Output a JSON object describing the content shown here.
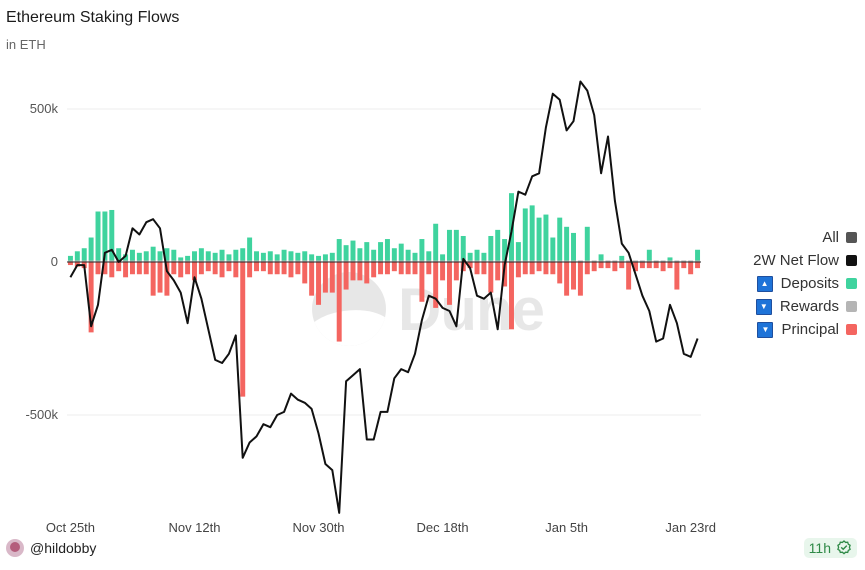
{
  "header": {
    "title": "Ethereum Staking Flows",
    "subtitle": "in ETH"
  },
  "legend": {
    "all": {
      "label": "All",
      "color": "#555555"
    },
    "net": {
      "label": "2W Net Flow",
      "color": "#111111"
    },
    "deposits": {
      "label": "Deposits",
      "color": "#3fd39e"
    },
    "rewards": {
      "label": "Rewards",
      "color": "#b5b5b5"
    },
    "principal": {
      "label": "Principal",
      "color": "#f46560"
    }
  },
  "watermark": {
    "text": "Dune"
  },
  "footer": {
    "user": "@hildobby",
    "age": "11h"
  },
  "chart_data": {
    "type": "bar+line",
    "title": "Ethereum Staking Flows",
    "ylabel": "in ETH",
    "ylim": [
      -880000,
      560000
    ],
    "yticks": [
      500000,
      0,
      -500000
    ],
    "ytick_labels": [
      "500k",
      "0",
      "-500k"
    ],
    "xticks": [
      {
        "label": "Oct 25th",
        "day": 0
      },
      {
        "label": "Nov 12th",
        "day": 18
      },
      {
        "label": "Nov 30th",
        "day": 36
      },
      {
        "label": "Dec 18th",
        "day": 54
      },
      {
        "label": "Jan 5th",
        "day": 72
      },
      {
        "label": "Jan 23rd",
        "day": 90
      }
    ],
    "days": 92,
    "series": [
      {
        "name": "Deposits",
        "type": "bar",
        "color": "#3fd39e",
        "values": [
          15000,
          30000,
          40000,
          75000,
          160000,
          160000,
          165000,
          40000,
          20000,
          35000,
          25000,
          30000,
          45000,
          30000,
          40000,
          35000,
          10000,
          15000,
          30000,
          40000,
          30000,
          25000,
          35000,
          20000,
          35000,
          40000,
          75000,
          30000,
          25000,
          30000,
          20000,
          35000,
          30000,
          25000,
          30000,
          20000,
          15000,
          20000,
          25000,
          70000,
          50000,
          65000,
          40000,
          60000,
          35000,
          60000,
          70000,
          40000,
          55000,
          35000,
          25000,
          70000,
          30000,
          120000,
          20000,
          100000,
          100000,
          80000,
          25000,
          35000,
          25000,
          80000,
          100000,
          70000,
          220000,
          60000,
          170000,
          180000,
          140000,
          150000,
          75000,
          140000,
          110000,
          90000,
          0,
          110000,
          0,
          20000,
          0,
          0,
          15000,
          0,
          0,
          0,
          35000,
          0,
          0,
          10000,
          0,
          0,
          0,
          35000
        ]
      },
      {
        "name": "Rewards",
        "type": "bar",
        "color": "#b5b5b5",
        "values": [
          5000,
          5000,
          5000,
          5000,
          5000,
          5000,
          5000,
          5000,
          5000,
          5000,
          5000,
          5000,
          5000,
          5000,
          5000,
          5000,
          5000,
          5000,
          5000,
          5000,
          5000,
          5000,
          5000,
          5000,
          5000,
          5000,
          5000,
          5000,
          5000,
          5000,
          5000,
          5000,
          5000,
          5000,
          5000,
          5000,
          5000,
          5000,
          5000,
          5000,
          5000,
          5000,
          5000,
          5000,
          5000,
          5000,
          5000,
          5000,
          5000,
          5000,
          5000,
          5000,
          5000,
          5000,
          5000,
          5000,
          5000,
          5000,
          5000,
          5000,
          5000,
          5000,
          5000,
          5000,
          5000,
          5000,
          5000,
          5000,
          5000,
          5000,
          5000,
          5000,
          5000,
          5000,
          5000,
          5000,
          5000,
          5000,
          5000,
          5000,
          5000,
          5000,
          5000,
          5000,
          5000,
          5000,
          5000,
          5000,
          5000,
          5000,
          5000,
          5000
        ]
      },
      {
        "name": "Principal",
        "type": "bar",
        "color": "#f46560",
        "values": [
          -10000,
          -15000,
          -20000,
          -230000,
          -40000,
          -40000,
          -50000,
          -30000,
          -50000,
          -40000,
          -40000,
          -40000,
          -110000,
          -100000,
          -110000,
          -40000,
          -50000,
          -40000,
          -60000,
          -40000,
          -30000,
          -40000,
          -50000,
          -30000,
          -50000,
          -440000,
          -50000,
          -30000,
          -30000,
          -40000,
          -40000,
          -40000,
          -50000,
          -40000,
          -70000,
          -110000,
          -140000,
          -100000,
          -100000,
          -260000,
          -90000,
          -60000,
          -60000,
          -70000,
          -50000,
          -40000,
          -40000,
          -30000,
          -40000,
          -40000,
          -40000,
          -130000,
          -40000,
          -150000,
          -60000,
          -140000,
          -60000,
          -30000,
          -20000,
          -40000,
          -40000,
          -100000,
          -60000,
          -80000,
          -220000,
          -50000,
          -40000,
          -40000,
          -30000,
          -40000,
          -40000,
          -70000,
          -110000,
          -90000,
          -110000,
          -40000,
          -30000,
          -20000,
          -20000,
          -30000,
          -20000,
          -90000,
          -30000,
          -20000,
          -20000,
          -20000,
          -30000,
          -20000,
          -90000,
          -20000,
          -40000,
          -20000
        ]
      },
      {
        "name": "2W Net Flow",
        "type": "line",
        "color": "#111111",
        "values": [
          -50000,
          -10000,
          -10000,
          -210000,
          -140000,
          30000,
          40000,
          0,
          20000,
          110000,
          90000,
          130000,
          140000,
          110000,
          -30000,
          -60000,
          -100000,
          -200000,
          -50000,
          -120000,
          -220000,
          -320000,
          -330000,
          -300000,
          -240000,
          -640000,
          -590000,
          -570000,
          -530000,
          -540000,
          -500000,
          -490000,
          -430000,
          -450000,
          -460000,
          -480000,
          -560000,
          -660000,
          -680000,
          -820000,
          -390000,
          -370000,
          -350000,
          -580000,
          -580000,
          -490000,
          -490000,
          -380000,
          -350000,
          -360000,
          -300000,
          -190000,
          -110000,
          -120000,
          -150000,
          -160000,
          -210000,
          10000,
          -20000,
          -110000,
          -120000,
          -100000,
          -220000,
          -10000,
          100000,
          230000,
          220000,
          280000,
          290000,
          440000,
          550000,
          530000,
          430000,
          460000,
          590000,
          560000,
          480000,
          290000,
          410000,
          200000,
          60000,
          30000,
          -40000,
          -110000,
          -160000,
          -260000,
          -250000,
          -140000,
          -200000,
          -300000,
          -310000,
          -250000
        ]
      }
    ]
  }
}
